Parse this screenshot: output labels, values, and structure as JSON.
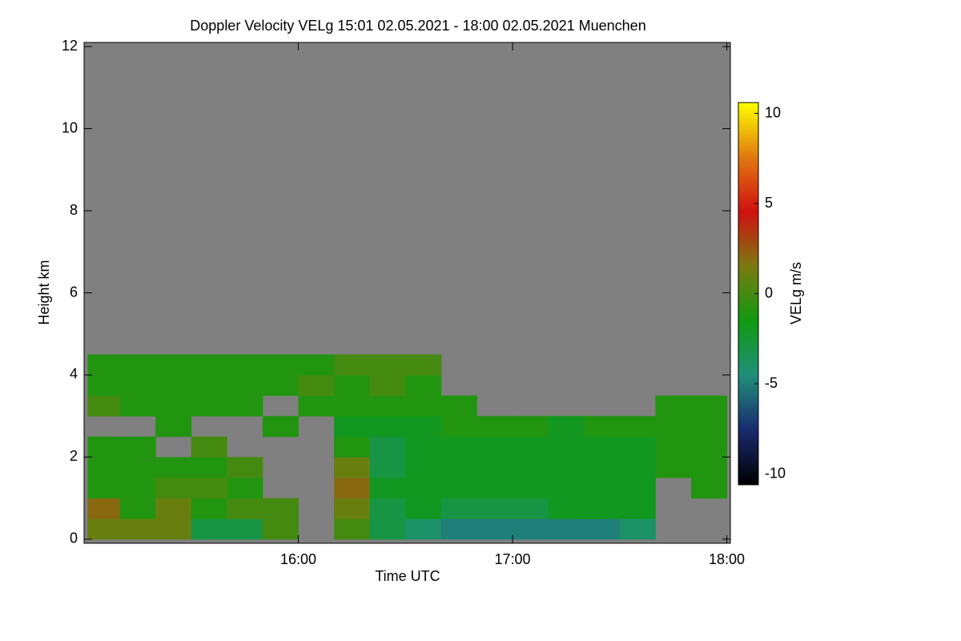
{
  "chart_data": {
    "type": "heatmap",
    "title": "Doppler Velocity VELg   15:01 02.05.2021 - 18:00 02.05.2021 Muenchen",
    "x_label": "Time UTC",
    "y_label": "Height km",
    "colorbar_label": "VELg m/s",
    "x": [
      "15:01",
      "15:10",
      "15:20",
      "15:30",
      "15:40",
      "15:50",
      "16:00",
      "16:10",
      "16:20",
      "16:30",
      "16:40",
      "16:50",
      "17:00",
      "17:10",
      "17:20",
      "17:30",
      "17:40",
      "17:50",
      "18:00"
    ],
    "y": [
      0,
      0.5,
      1,
      1.5,
      2,
      2.5,
      3,
      3.5,
      4,
      4.5,
      5
    ],
    "z": [
      [
        1,
        1,
        1,
        -3,
        -3,
        0,
        null,
        0,
        -3,
        -4,
        -5,
        -5,
        -5,
        -5,
        -5,
        -4,
        null,
        null
      ],
      [
        2,
        -1,
        1,
        -1,
        0,
        0,
        null,
        1,
        -3,
        -2,
        -3,
        -3,
        -3,
        -2,
        -2,
        -2,
        null,
        null
      ],
      [
        -1,
        -1,
        0,
        0,
        -1,
        null,
        null,
        2,
        -2,
        -2,
        -2,
        -2,
        -2,
        -2,
        -2,
        -2,
        null,
        -1
      ],
      [
        -1,
        -1,
        -1,
        -1,
        0,
        null,
        null,
        1,
        -3,
        -2,
        -2,
        -2,
        -2,
        -2,
        -2,
        -2,
        -1,
        -1
      ],
      [
        -1,
        -1,
        null,
        0,
        null,
        null,
        null,
        -1,
        -3,
        -2,
        -2,
        -2,
        -2,
        -2,
        -2,
        -2,
        -1,
        -1
      ],
      [
        null,
        null,
        -1,
        null,
        null,
        -1,
        null,
        -2,
        -2,
        -2,
        -1,
        -1,
        -1,
        -2,
        -1,
        -1,
        -1,
        -1
      ],
      [
        0,
        -1,
        -1,
        -1,
        -1,
        null,
        -1,
        -1,
        -1,
        -1,
        -1,
        null,
        null,
        null,
        null,
        null,
        -1,
        -1
      ],
      [
        -1,
        -1,
        -1,
        -1,
        -1,
        -1,
        0,
        -1,
        0,
        -1,
        null,
        null,
        null,
        null,
        null,
        null,
        null,
        null
      ],
      [
        -1,
        -1,
        -1,
        -1,
        -1,
        -1,
        -1,
        0,
        0,
        0,
        null,
        null,
        null,
        null,
        null,
        null,
        null,
        null
      ],
      [
        null,
        null,
        null,
        null,
        null,
        null,
        null,
        null,
        null,
        null,
        null,
        null,
        null,
        null,
        null,
        null,
        null,
        null
      ]
    ],
    "xlim": [
      "15:00",
      "18:01"
    ],
    "xticks": [
      "16:00",
      "17:00",
      "18:00"
    ],
    "ylim": [
      -0.1,
      12.1
    ],
    "yticks": [
      0,
      2,
      4,
      6,
      8,
      10,
      12
    ],
    "zlim": [
      -10.6,
      10.6
    ],
    "zticks": [
      -10,
      -5,
      0,
      5,
      10
    ],
    "colorscale": [
      "#000000",
      "#1a2a6e",
      "#1f8f7a",
      "#109a10",
      "#7a7a10",
      "#d01010",
      "#e07a10",
      "#ffff00"
    ],
    "missing_color": "#808080"
  }
}
